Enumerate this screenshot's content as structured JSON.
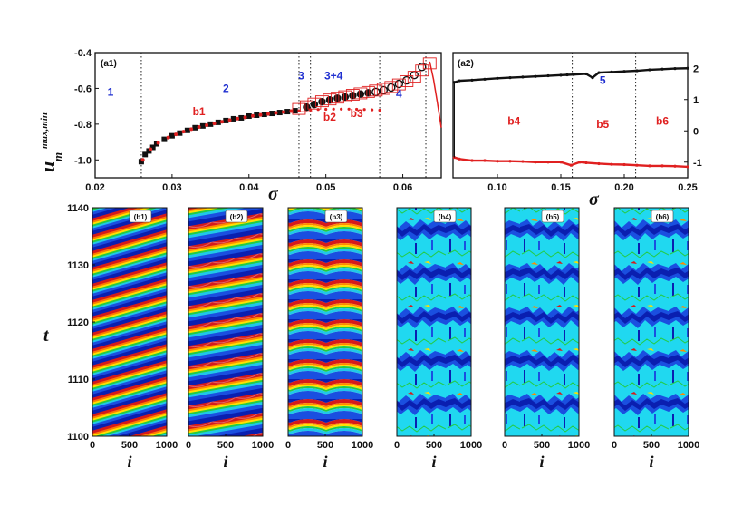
{
  "chart_data": [
    {
      "id": "a1",
      "type": "scatter",
      "panel_label": "(a1)",
      "xlabel": "σ",
      "ylabel_main": "u",
      "ylabel_sub": "m",
      "ylabel_sup": "max,min",
      "xlim": [
        0.02,
        0.065
      ],
      "ylim": [
        -1.1,
        -0.4
      ],
      "xticks": [
        "0.02",
        "0.03",
        "0.04",
        "0.05",
        "0.06"
      ],
      "yticks": [
        "-1.0",
        "-0.8",
        "-0.6",
        "-0.4"
      ],
      "dotted_lines_x": [
        0.026,
        0.0465,
        0.048,
        0.057,
        0.063
      ],
      "region_labels": [
        {
          "text": "1",
          "x": 0.022,
          "y": -0.64,
          "color": "#1f2fd0"
        },
        {
          "text": "2",
          "x": 0.037,
          "y": -0.62,
          "color": "#1f2fd0"
        },
        {
          "text": "3",
          "x": 0.0468,
          "y": -0.55,
          "color": "#1f2fd0"
        },
        {
          "text": "3+4",
          "x": 0.051,
          "y": -0.55,
          "color": "#1f2fd0"
        },
        {
          "text": "4",
          "x": 0.0595,
          "y": -0.65,
          "color": "#1f2fd0"
        },
        {
          "text": "b1",
          "x": 0.0335,
          "y": -0.75,
          "color": "#e02020"
        },
        {
          "text": "b2",
          "x": 0.0505,
          "y": -0.78,
          "color": "#e02020"
        },
        {
          "text": "b3",
          "x": 0.054,
          "y": -0.76,
          "color": "#e02020"
        }
      ],
      "series": [
        {
          "color": "#111111",
          "marker": "square",
          "x": [
            0.026,
            0.0265,
            0.027,
            0.0275,
            0.028,
            0.029,
            0.03,
            0.031,
            0.032,
            0.033,
            0.034,
            0.035,
            0.036,
            0.037,
            0.038,
            0.039,
            0.04,
            0.041,
            0.042,
            0.043,
            0.044,
            0.045,
            0.046
          ],
          "y": [
            -1.01,
            -0.97,
            -0.95,
            -0.93,
            -0.91,
            -0.885,
            -0.865,
            -0.85,
            -0.835,
            -0.82,
            -0.81,
            -0.8,
            -0.79,
            -0.78,
            -0.77,
            -0.765,
            -0.755,
            -0.75,
            -0.745,
            -0.74,
            -0.735,
            -0.73,
            -0.725
          ]
        },
        {
          "color": "#e02020",
          "marker": "dot",
          "x": [
            0.0262,
            0.0272,
            0.0282,
            0.0295,
            0.0305,
            0.0315,
            0.0325,
            0.0335,
            0.0345,
            0.0355,
            0.0365,
            0.0375,
            0.0385,
            0.0395,
            0.0405,
            0.0415,
            0.0425,
            0.0435,
            0.0445,
            0.0455
          ],
          "y": [
            -1.0,
            -0.94,
            -0.905,
            -0.875,
            -0.857,
            -0.842,
            -0.828,
            -0.816,
            -0.806,
            -0.796,
            -0.787,
            -0.777,
            -0.769,
            -0.762,
            -0.754,
            -0.748,
            -0.743,
            -0.737,
            -0.732,
            -0.727
          ]
        },
        {
          "color": "#111111",
          "marker": "filled-circle",
          "x": [
            0.0475,
            0.0485,
            0.0495,
            0.0505,
            0.0515,
            0.0525,
            0.0535,
            0.0545,
            0.0555
          ],
          "y": [
            -0.705,
            -0.69,
            -0.675,
            -0.665,
            -0.655,
            -0.648,
            -0.64,
            -0.632,
            -0.625
          ]
        },
        {
          "color": "#111111",
          "marker": "open-circle",
          "x": [
            0.0565,
            0.0575,
            0.0585,
            0.0595,
            0.0605,
            0.0615,
            0.0625
          ],
          "y": [
            -0.62,
            -0.61,
            -0.595,
            -0.575,
            -0.555,
            -0.525,
            -0.48
          ]
        },
        {
          "color": "#e02020",
          "marker": "open-rect",
          "x": [
            0.0465,
            0.0475,
            0.0485,
            0.0495,
            0.0505,
            0.0515,
            0.0525,
            0.0535,
            0.0545,
            0.0555,
            0.0565,
            0.0575,
            0.0585,
            0.0595,
            0.0605,
            0.0615,
            0.0625,
            0.0635
          ],
          "y": [
            -0.715,
            -0.7,
            -0.685,
            -0.672,
            -0.662,
            -0.652,
            -0.644,
            -0.636,
            -0.628,
            -0.62,
            -0.612,
            -0.603,
            -0.592,
            -0.578,
            -0.56,
            -0.535,
            -0.5,
            -0.46
          ]
        },
        {
          "color": "#e02020",
          "marker": "small-dot",
          "x": [
            0.0465,
            0.048,
            0.049,
            0.05,
            0.051,
            0.052,
            0.053,
            0.054,
            0.055,
            0.056,
            0.057
          ],
          "y": [
            -0.725,
            -0.72,
            -0.718,
            -0.717,
            -0.716,
            -0.716,
            -0.716,
            -0.717,
            -0.718,
            -0.72,
            -0.722
          ]
        },
        {
          "color": "#e02020",
          "marker": "line",
          "x": [
            0.0635,
            0.064,
            0.0645,
            0.065
          ],
          "y": [
            -0.45,
            -0.55,
            -0.68,
            -0.82
          ]
        }
      ]
    },
    {
      "id": "a2",
      "type": "scatter",
      "panel_label": "(a2)",
      "xlabel": "σ",
      "xlim": [
        0.065,
        0.25
      ],
      "ylim": [
        -1.5,
        2.5
      ],
      "xticks": [
        "0.10",
        "0.15",
        "0.20",
        "0.25"
      ],
      "yticks": [
        "-1",
        "0",
        "1",
        "2"
      ],
      "dotted_lines_x": [
        0.159,
        0.209
      ],
      "region_labels": [
        {
          "text": "5",
          "x": 0.183,
          "y": 1.5,
          "color": "#1f2fd0"
        },
        {
          "text": "b4",
          "x": 0.113,
          "y": 0.2,
          "color": "#e02020"
        },
        {
          "text": "b5",
          "x": 0.183,
          "y": 0.1,
          "color": "#e02020"
        },
        {
          "text": "b6",
          "x": 0.23,
          "y": 0.2,
          "color": "#e02020"
        }
      ],
      "series": [
        {
          "color": "#111111",
          "x": [
            0.066,
            0.07,
            0.08,
            0.09,
            0.1,
            0.11,
            0.12,
            0.13,
            0.14,
            0.15,
            0.155,
            0.16,
            0.17,
            0.175,
            0.18,
            0.19,
            0.2,
            0.21,
            0.22,
            0.23,
            0.24,
            0.25
          ],
          "y": [
            1.55,
            1.6,
            1.62,
            1.65,
            1.68,
            1.7,
            1.72,
            1.74,
            1.76,
            1.78,
            1.79,
            1.8,
            1.82,
            1.7,
            1.86,
            1.88,
            1.9,
            1.92,
            1.95,
            1.97,
            1.99,
            2.0
          ]
        },
        {
          "color": "#e02020",
          "x": [
            0.066,
            0.07,
            0.08,
            0.09,
            0.1,
            0.11,
            0.12,
            0.13,
            0.14,
            0.15,
            0.158,
            0.165,
            0.17,
            0.18,
            0.19,
            0.2,
            0.21,
            0.22,
            0.23,
            0.24,
            0.25
          ],
          "y": [
            -0.85,
            -0.9,
            -0.95,
            -0.95,
            -0.97,
            -0.97,
            -0.98,
            -1.0,
            -1.0,
            -1.0,
            -1.1,
            -1.0,
            -1.02,
            -1.05,
            -1.07,
            -1.08,
            -1.1,
            -1.12,
            -1.12,
            -1.13,
            -1.15
          ]
        }
      ]
    },
    {
      "id": "b",
      "type": "heatmap",
      "ylabel": "t",
      "xlabel": "i",
      "ylim": [
        1100,
        1140
      ],
      "yticks": [
        "1100",
        "1110",
        "1120",
        "1130",
        "1140"
      ],
      "xticks": [
        "0",
        "500",
        "1000"
      ],
      "panels": [
        {
          "label": "(b1)",
          "pattern": "traveling-wave"
        },
        {
          "label": "(b2)",
          "pattern": "stepped-wave"
        },
        {
          "label": "(b3)",
          "pattern": "arc-wave"
        },
        {
          "label": "(b4)",
          "pattern": "chaotic"
        },
        {
          "label": "(b5)",
          "pattern": "chaotic"
        },
        {
          "label": "(b6)",
          "pattern": "chaotic"
        }
      ]
    }
  ]
}
